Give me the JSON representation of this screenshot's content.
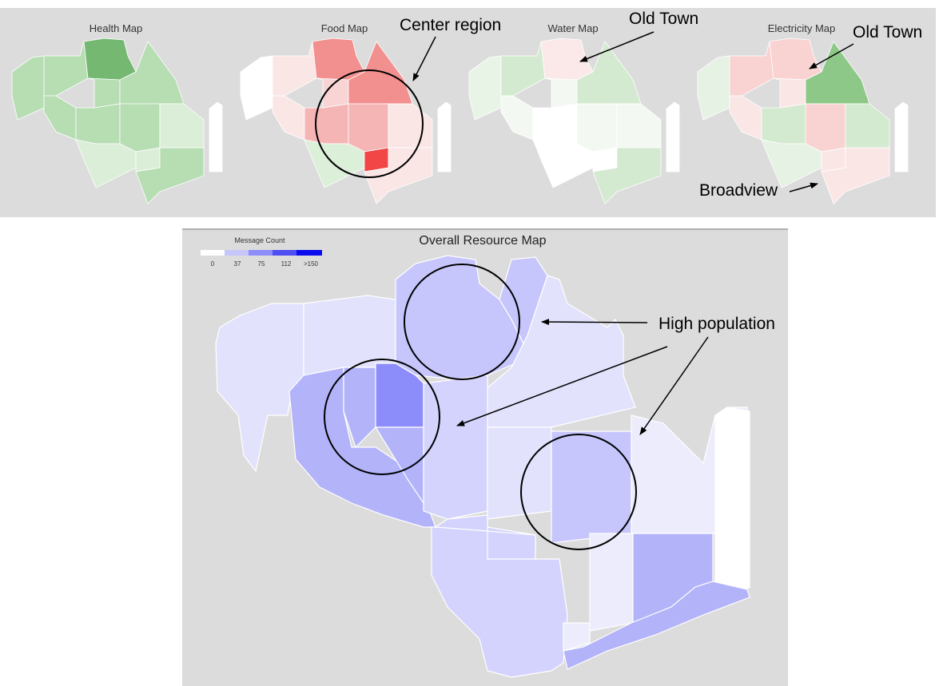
{
  "small_maps": [
    {
      "title": "Health Map",
      "palette": "green",
      "colors": {
        "base": "#b7ddb3",
        "a": "#89c886",
        "b": "#c9e6c5",
        "c": "#dbeed8",
        "d": "#74b872",
        "e": "#ffffff"
      }
    },
    {
      "title": "Food Map",
      "palette": "red",
      "colors": {
        "base": "#f9d4d4",
        "a": "#f28f8f",
        "b": "#f6b5b5",
        "c": "#fbe6e6",
        "d": "#f24545",
        "e": "#ffffff",
        "f": "#dcefd9"
      }
    },
    {
      "title": "Water Map",
      "palette": "green",
      "colors": {
        "base": "#e8f4e6",
        "a": "#d3ead0",
        "b": "#f3f9f2",
        "c": "#fbe9e9",
        "d": "#ffffff",
        "e": "#ffffff"
      }
    },
    {
      "title": "Electricity Map",
      "palette": "mixed",
      "colors": {
        "base": "#e6f2e4",
        "a": "#8ec889",
        "b": "#f9d2d2",
        "c": "#fbe6e6",
        "d": "#d3ead0",
        "e": "#ffffff"
      }
    }
  ],
  "annotations": {
    "center_region": "Center region",
    "old_town_1": "Old Town",
    "old_town_2": "Old Town",
    "broadview": "Broadview",
    "high_population": "High population"
  },
  "overall_map": {
    "title": "Overall Resource Map",
    "legend": {
      "title": "Message Count",
      "ticks": [
        "0",
        "37",
        "75",
        "112",
        ">150"
      ],
      "colors": [
        "#ffffff",
        "#c6c6fb",
        "#8d8dfb",
        "#4e4ef3",
        "#0b0bee"
      ]
    },
    "fills": {
      "pale": "#e2e2fc",
      "light": "#d3d3fd",
      "mid": "#c6c6fc",
      "strong": "#b3b3fa",
      "dark": "#8c8cfa",
      "white": "#ffffff",
      "faint": "#ececfc"
    }
  }
}
